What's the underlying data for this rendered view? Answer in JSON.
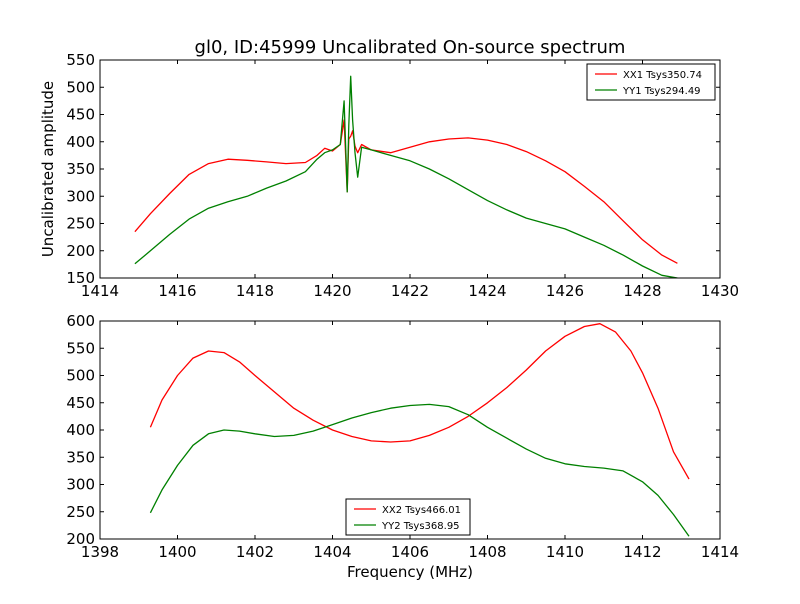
{
  "figure": {
    "title": "gl0, ID:45999 Uncalibrated On-source spectrum",
    "xlabel": "Frequency (MHz)",
    "ylabel": "Uncalibrated amplitude"
  },
  "chart_data": [
    {
      "type": "line",
      "title": "gl0, ID:45999 Uncalibrated On-source spectrum",
      "xlabel": "",
      "ylabel": "Uncalibrated amplitude",
      "xlim": [
        1414,
        1430
      ],
      "ylim": [
        150,
        550
      ],
      "xticks": [
        "1414",
        "1416",
        "1418",
        "1420",
        "1422",
        "1424",
        "1426",
        "1428",
        "1430"
      ],
      "yticks": [
        "150",
        "200",
        "250",
        "300",
        "350",
        "400",
        "450",
        "500",
        "550"
      ],
      "grid": false,
      "legend_position": "top-right",
      "series": [
        {
          "name": "XX1 Tsys350.74",
          "color": "#ff0000",
          "x": [
            1414.9,
            1415.3,
            1415.8,
            1416.3,
            1416.8,
            1417.3,
            1417.8,
            1418.3,
            1418.8,
            1419.3,
            1419.6,
            1419.8,
            1420.0,
            1420.2,
            1420.3,
            1420.38,
            1420.42,
            1420.47,
            1420.52,
            1420.58,
            1420.65,
            1420.75,
            1421.0,
            1421.5,
            1422.0,
            1422.5,
            1423.0,
            1423.5,
            1424.0,
            1424.5,
            1425.0,
            1425.5,
            1426.0,
            1426.5,
            1427.0,
            1427.5,
            1428.0,
            1428.5,
            1428.9
          ],
          "y": [
            235,
            268,
            305,
            340,
            360,
            368,
            366,
            363,
            360,
            362,
            375,
            388,
            383,
            395,
            440,
            308,
            405,
            410,
            420,
            392,
            380,
            395,
            385,
            380,
            390,
            400,
            405,
            407,
            403,
            395,
            382,
            365,
            345,
            318,
            290,
            255,
            220,
            192,
            177
          ]
        },
        {
          "name": "YY1 Tsys294.49",
          "color": "#008000",
          "x": [
            1414.9,
            1415.3,
            1415.8,
            1416.3,
            1416.8,
            1417.3,
            1417.8,
            1418.3,
            1418.8,
            1419.3,
            1419.6,
            1419.8,
            1420.0,
            1420.2,
            1420.3,
            1420.38,
            1420.42,
            1420.47,
            1420.52,
            1420.58,
            1420.65,
            1420.75,
            1421.0,
            1421.5,
            1422.0,
            1422.5,
            1423.0,
            1423.5,
            1424.0,
            1424.5,
            1425.0,
            1425.5,
            1426.0,
            1426.5,
            1427.0,
            1427.5,
            1428.0,
            1428.5,
            1428.9
          ],
          "y": [
            176,
            200,
            230,
            258,
            278,
            290,
            300,
            315,
            328,
            345,
            368,
            380,
            385,
            395,
            475,
            308,
            430,
            520,
            440,
            380,
            335,
            390,
            385,
            375,
            365,
            350,
            332,
            312,
            292,
            275,
            260,
            250,
            240,
            225,
            210,
            192,
            172,
            155,
            150
          ]
        }
      ]
    },
    {
      "type": "line",
      "title": "",
      "xlabel": "Frequency (MHz)",
      "ylabel": "",
      "xlim": [
        1398,
        1414
      ],
      "ylim": [
        200,
        600
      ],
      "xticks": [
        "1398",
        "1400",
        "1402",
        "1404",
        "1406",
        "1408",
        "1410",
        "1412",
        "1414"
      ],
      "yticks": [
        "200",
        "250",
        "300",
        "350",
        "400",
        "450",
        "500",
        "550",
        "600"
      ],
      "grid": false,
      "legend_position": "bottom-center",
      "series": [
        {
          "name": "XX2 Tsys466.01",
          "color": "#ff0000",
          "x": [
            1399.3,
            1399.6,
            1400.0,
            1400.4,
            1400.8,
            1401.2,
            1401.6,
            1402.0,
            1402.5,
            1403.0,
            1403.5,
            1404.0,
            1404.5,
            1405.0,
            1405.5,
            1406.0,
            1406.5,
            1407.0,
            1407.5,
            1408.0,
            1408.5,
            1409.0,
            1409.5,
            1410.0,
            1410.5,
            1410.9,
            1411.3,
            1411.7,
            1412.0,
            1412.4,
            1412.8,
            1413.2
          ],
          "y": [
            405,
            455,
            500,
            532,
            545,
            542,
            525,
            500,
            470,
            440,
            418,
            400,
            388,
            380,
            378,
            380,
            390,
            405,
            425,
            450,
            478,
            510,
            545,
            572,
            590,
            595,
            580,
            545,
            505,
            440,
            360,
            310
          ]
        },
        {
          "name": "YY2 Tsys368.95",
          "color": "#008000",
          "x": [
            1399.3,
            1399.6,
            1400.0,
            1400.4,
            1400.8,
            1401.2,
            1401.6,
            1402.0,
            1402.5,
            1403.0,
            1403.5,
            1404.0,
            1404.5,
            1405.0,
            1405.5,
            1406.0,
            1406.5,
            1407.0,
            1407.5,
            1408.0,
            1408.5,
            1409.0,
            1409.5,
            1410.0,
            1410.5,
            1411.0,
            1411.5,
            1412.0,
            1412.4,
            1412.8,
            1413.2
          ],
          "y": [
            248,
            290,
            335,
            372,
            393,
            400,
            398,
            393,
            388,
            390,
            398,
            410,
            422,
            432,
            440,
            445,
            447,
            443,
            428,
            405,
            385,
            365,
            348,
            338,
            333,
            330,
            325,
            305,
            280,
            245,
            205
          ]
        }
      ]
    }
  ]
}
